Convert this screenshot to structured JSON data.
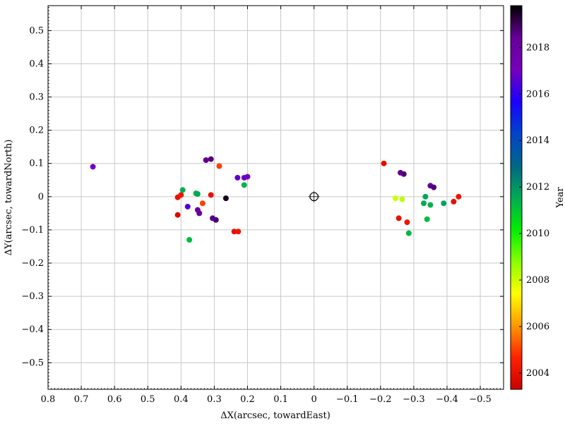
{
  "chart_data": {
    "type": "scatter",
    "xlabel": "ΔX(arcsec, towardEast)",
    "ylabel": "ΔY(arcsec, towardNorth)",
    "colorbar_label": "Year",
    "xlim": [
      0.8,
      -0.57
    ],
    "ylim": [
      -0.58,
      0.575
    ],
    "x_ticks": [
      0.8,
      0.7,
      0.6,
      0.5,
      0.4,
      0.3,
      0.2,
      0.1,
      0,
      -0.1,
      -0.2,
      -0.3,
      -0.4,
      -0.5
    ],
    "x_tick_labels": [
      "0.8",
      "0.7",
      "0.6",
      "0.5",
      "0.4",
      "0.3",
      "0.2",
      "0.1",
      "0",
      "−0.1",
      "−0.2",
      "−0.3",
      "−0.4",
      "−0.5"
    ],
    "y_ticks": [
      0.5,
      0.4,
      0.3,
      0.2,
      0.1,
      0,
      -0.1,
      -0.2,
      -0.3,
      -0.4,
      -0.5
    ],
    "y_tick_labels": [
      "0.5",
      "0.4",
      "0.3",
      "0.2",
      "0.1",
      "0",
      "−0.1",
      "−0.2",
      "−0.3",
      "−0.4",
      "−0.5"
    ],
    "colorbar_range": [
      2003.3,
      2019.8
    ],
    "colorbar_ticks": [
      2004,
      2006,
      2008,
      2010,
      2012,
      2014,
      2016,
      2018
    ],
    "colorbar_tick_labels": [
      "2004",
      "2006",
      "2008",
      "2010",
      "2012",
      "2014",
      "2016",
      "2018"
    ],
    "colormap": [
      "#cc0000",
      "#ff2200",
      "#ff9900",
      "#ffff00",
      "#88ff00",
      "#00ee00",
      "#00aa55",
      "#006688",
      "#0044cc",
      "#1a00ff",
      "#7700bb",
      "#660099",
      "#000000"
    ],
    "grid": true,
    "reference_marker": {
      "x": 0,
      "y": 0,
      "symbol": "star-center"
    },
    "points": [
      {
        "x": 0.665,
        "y": 0.09,
        "year": 2017.0
      },
      {
        "x": 0.41,
        "y": -0.055,
        "year": 2003.7
      },
      {
        "x": 0.41,
        "y": -0.002,
        "year": 2004.0
      },
      {
        "x": 0.4,
        "y": 0.005,
        "year": 2004.2
      },
      {
        "x": 0.395,
        "y": 0.02,
        "year": 2011.5
      },
      {
        "x": 0.38,
        "y": -0.03,
        "year": 2016.5
      },
      {
        "x": 0.375,
        "y": -0.13,
        "year": 2011.2
      },
      {
        "x": 0.355,
        "y": 0.01,
        "year": 2011.3
      },
      {
        "x": 0.35,
        "y": 0.008,
        "year": 2011.6
      },
      {
        "x": 0.35,
        "y": -0.04,
        "year": 2018.2
      },
      {
        "x": 0.345,
        "y": -0.05,
        "year": 2018.4
      },
      {
        "x": 0.335,
        "y": -0.02,
        "year": 2005.0
      },
      {
        "x": 0.325,
        "y": 0.11,
        "year": 2018.5
      },
      {
        "x": 0.31,
        "y": 0.113,
        "year": 2018.7
      },
      {
        "x": 0.31,
        "y": 0.005,
        "year": 2004.0
      },
      {
        "x": 0.305,
        "y": -0.065,
        "year": 2018.6
      },
      {
        "x": 0.295,
        "y": -0.07,
        "year": 2018.8
      },
      {
        "x": 0.285,
        "y": 0.092,
        "year": 2005.0
      },
      {
        "x": 0.265,
        "y": -0.005,
        "year": 2019.5
      },
      {
        "x": 0.24,
        "y": -0.105,
        "year": 2004.0
      },
      {
        "x": 0.228,
        "y": -0.105,
        "year": 2004.2
      },
      {
        "x": 0.23,
        "y": 0.057,
        "year": 2016.7
      },
      {
        "x": 0.21,
        "y": 0.035,
        "year": 2011.4
      },
      {
        "x": 0.21,
        "y": 0.057,
        "year": 2016.9
      },
      {
        "x": 0.2,
        "y": 0.06,
        "year": 2017.1
      },
      {
        "x": -0.21,
        "y": 0.1,
        "year": 2003.9
      },
      {
        "x": -0.245,
        "y": -0.005,
        "year": 2008.0
      },
      {
        "x": -0.265,
        "y": -0.008,
        "year": 2008.2
      },
      {
        "x": -0.255,
        "y": -0.065,
        "year": 2004.0
      },
      {
        "x": -0.26,
        "y": 0.072,
        "year": 2018.5
      },
      {
        "x": -0.27,
        "y": 0.068,
        "year": 2018.7
      },
      {
        "x": -0.28,
        "y": -0.077,
        "year": 2004.2
      },
      {
        "x": -0.285,
        "y": -0.11,
        "year": 2011.3
      },
      {
        "x": -0.33,
        "y": -0.02,
        "year": 2011.5
      },
      {
        "x": -0.335,
        "y": 0.0,
        "year": 2011.6
      },
      {
        "x": -0.34,
        "y": -0.068,
        "year": 2011.2
      },
      {
        "x": -0.35,
        "y": -0.025,
        "year": 2011.4
      },
      {
        "x": -0.35,
        "y": 0.033,
        "year": 2018.5
      },
      {
        "x": -0.36,
        "y": 0.028,
        "year": 2018.7
      },
      {
        "x": -0.39,
        "y": -0.02,
        "year": 2011.7
      },
      {
        "x": -0.42,
        "y": -0.015,
        "year": 2004.0
      },
      {
        "x": -0.435,
        "y": 0.0,
        "year": 2004.2
      }
    ]
  }
}
